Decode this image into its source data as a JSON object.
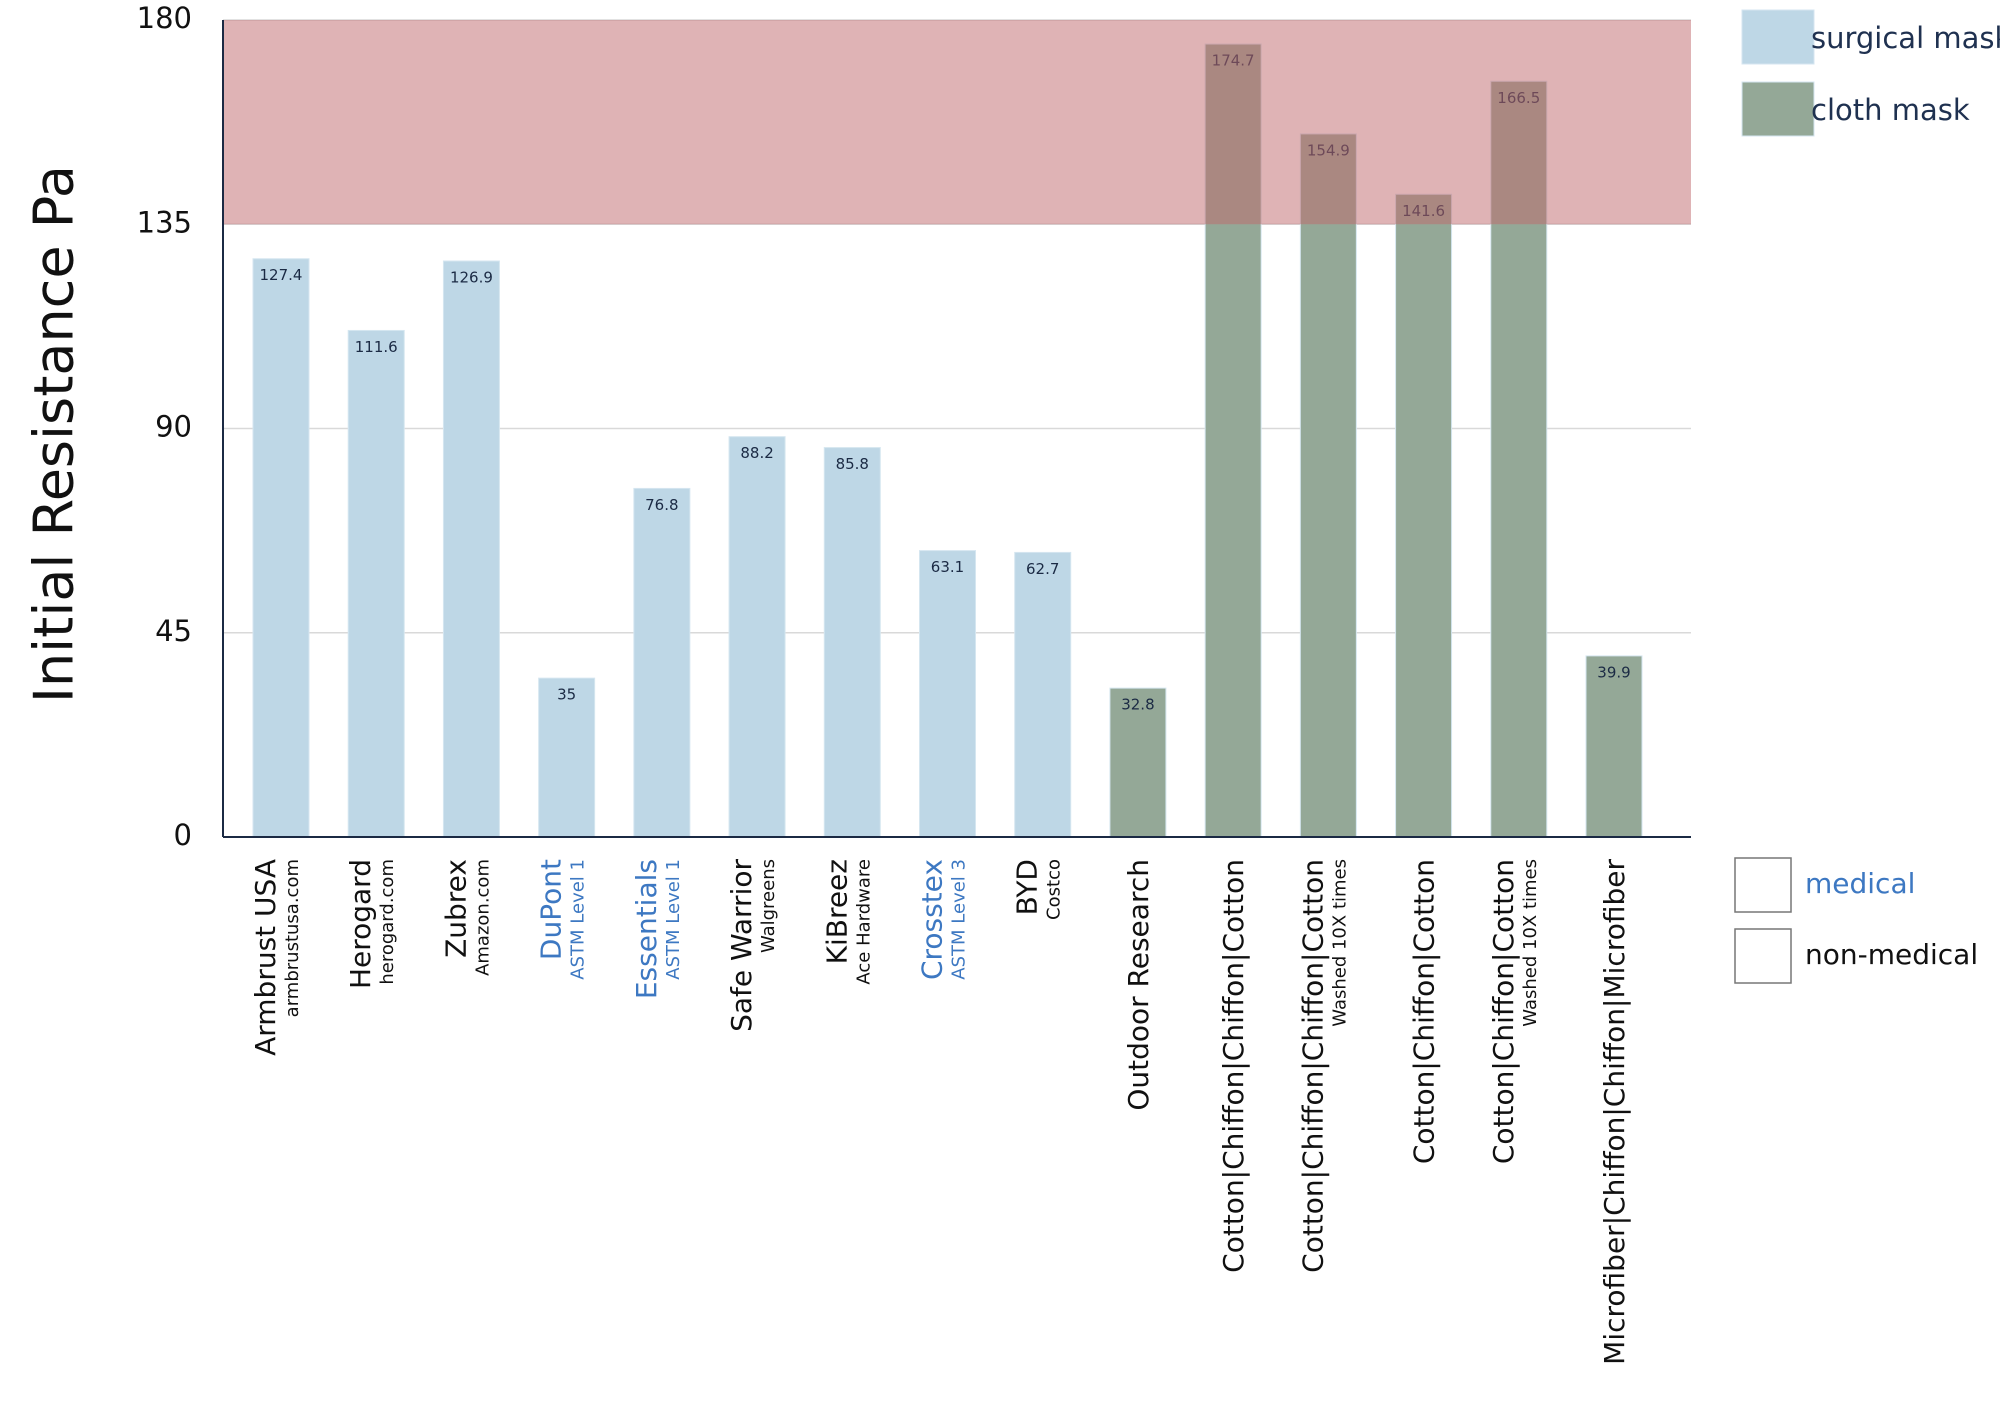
{
  "chart_data": {
    "type": "bar",
    "y_label": "Initial Resistance Pa",
    "categories": [
      "Armbrust USA",
      "Herogard",
      "Zubrex",
      "DuPont",
      "Essentials",
      "Safe Warrior",
      "KiBreez",
      "Crosstex",
      "BYD",
      "Outdoor Research",
      "Cotton|Chiffon|Chiffon|Cotton",
      "Cotton|Chiffon|Chiffon|Cotton",
      "Cotton|Chiffon|Cotton",
      "Cotton|Chiffon|Cotton",
      "Microfiber|Chiffon|Chiffon|Microfiber"
    ],
    "subtitles": [
      "armbrustusa.com",
      "herogard.com",
      "Amazon.com",
      "ASTM Level 1",
      "ASTM Level 1",
      "Walgreens",
      "Ace Hardware",
      "ASTM Level 3",
      "Costco",
      null,
      null,
      "Washed 10X times",
      null,
      "Washed 10X times",
      null
    ],
    "category_class": [
      "non-medical",
      "non-medical",
      "non-medical",
      "medical",
      "medical",
      "non-medical",
      "non-medical",
      "medical",
      "non-medical",
      "non-medical",
      "non-medical",
      "non-medical",
      "non-medical",
      "non-medical",
      "non-medical"
    ],
    "label_classes": [
      {
        "name": "medical",
        "color": "#3d78c2"
      },
      {
        "name": "non-medical",
        "color": "#111111"
      }
    ],
    "series": [
      {
        "name": "surgical mask",
        "color": "#bed7e6",
        "values": [
          127.4,
          111.6,
          126.9,
          35,
          76.8,
          88.2,
          85.8,
          63.1,
          62.7,
          null,
          null,
          null,
          null,
          null,
          null
        ]
      },
      {
        "name": "cloth mask",
        "color": "#94a897",
        "values": [
          null,
          null,
          null,
          null,
          null,
          null,
          null,
          null,
          null,
          32.8,
          174.7,
          154.9,
          141.6,
          166.5,
          39.9
        ]
      }
    ],
    "highlight": {
      "from": 135,
      "to": 180,
      "color": "#c0686b"
    },
    "ylim": [
      0,
      180
    ],
    "yticks": [
      0,
      45,
      90,
      135,
      180
    ],
    "grid": true
  }
}
